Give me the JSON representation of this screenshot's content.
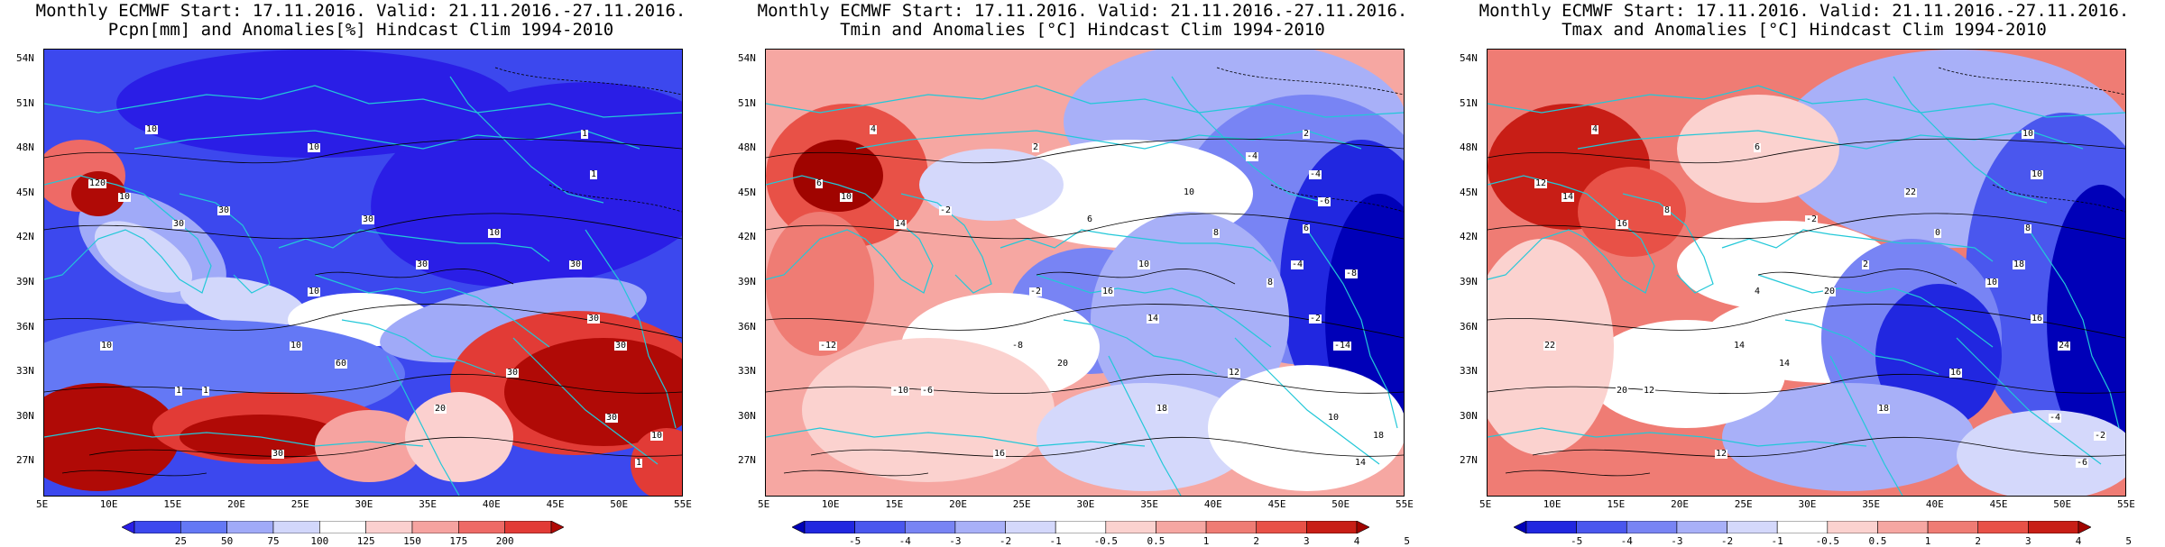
{
  "palettes": {
    "pcpn": [
      "#2a1ee6",
      "#3c48ee",
      "#6478f5",
      "#a0aaf8",
      "#d2d7fb",
      "#ffffff",
      "#fbd0cf",
      "#f6a3a0",
      "#ee6a66",
      "#e23b36",
      "#b00a06"
    ],
    "temp": [
      "#0000b8",
      "#2127e0",
      "#4a57ee",
      "#7884f4",
      "#a8b0f8",
      "#d4d8fb",
      "#ffffff",
      "#fbd2cf",
      "#f6a7a2",
      "#ef7c74",
      "#e85147",
      "#c81e16",
      "#a00400"
    ]
  },
  "panels": [
    {
      "id": "pcpn",
      "title_line1": "Monthly ECMWF Start: 17.11.2016. Valid: 21.11.2016.-27.11.2016.",
      "title_line2": "Pcpn[mm] and Anomalies[%] Hindcast Clim 1994-2010",
      "palette": "pcpn",
      "colorbar_labels": [
        "25",
        "50",
        "75",
        "100",
        "125",
        "150",
        "175",
        "200"
      ],
      "contour_labels": [
        "10",
        "1",
        "120",
        "10",
        "30",
        "10",
        "30",
        "30",
        "10",
        "30",
        "10",
        "1",
        "1",
        "10",
        "30",
        "30",
        "1",
        "10",
        "30",
        "30",
        "1",
        "10",
        "30",
        "60",
        "20",
        "30"
      ]
    },
    {
      "id": "tmin",
      "title_line1": "Monthly ECMWF Start: 17.11.2016. Valid: 21.11.2016.-27.11.2016.",
      "title_line2": "Tmin and Anomalies [°C] Hindcast Clim 1994-2010",
      "palette": "temp",
      "colorbar_labels": [
        "-5",
        "-4",
        "-3",
        "-2",
        "-1",
        "-0.5",
        "0.5",
        "1",
        "2",
        "3",
        "4",
        "5"
      ],
      "contour_labels": [
        "4",
        "2",
        "6",
        "10",
        "14",
        "2",
        "-2",
        "6",
        "8",
        "10",
        "-2",
        "-4",
        "-6",
        "-8",
        "-2",
        "-4",
        "-10",
        "-12",
        "-14",
        "10",
        "14",
        "18",
        "16",
        "20",
        "18",
        "12",
        "16",
        "10",
        "8",
        "6",
        "-6",
        "-4",
        "14",
        "-8"
      ]
    },
    {
      "id": "tmax",
      "title_line1": "Monthly ECMWF Start: 17.11.2016. Valid: 21.11.2016.-27.11.2016.",
      "title_line2": "Tmax and Anomalies [°C] Hindcast Clim 1994-2010",
      "palette": "temp",
      "colorbar_labels": [
        "-5",
        "-4",
        "-3",
        "-2",
        "-1",
        "-0.5",
        "0.5",
        "1",
        "2",
        "3",
        "4",
        "5"
      ],
      "contour_labels": [
        "4",
        "10",
        "12",
        "14",
        "16",
        "6",
        "8",
        "-2",
        "0",
        "2",
        "4",
        "10",
        "12",
        "14",
        "16",
        "18",
        "20",
        "22",
        "24",
        "-4",
        "-6",
        "-2",
        "12",
        "14",
        "18",
        "16",
        "20",
        "22",
        "10",
        "8"
      ]
    }
  ],
  "lat_labels": [
    "54N",
    "51N",
    "48N",
    "45N",
    "42N",
    "39N",
    "36N",
    "33N",
    "30N",
    "27N"
  ],
  "lon_labels": [
    "5E",
    "10E",
    "15E",
    "20E",
    "25E",
    "30E",
    "35E",
    "40E",
    "45E",
    "50E",
    "55E"
  ]
}
